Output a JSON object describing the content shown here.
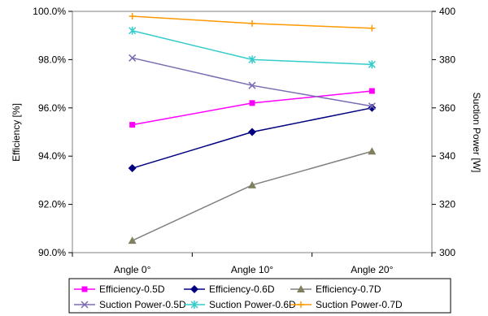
{
  "chart_data": {
    "type": "line",
    "categories": [
      "Angle 0°",
      "Angle 10°",
      "Angle 20°"
    ],
    "left_axis": {
      "label": "Efficiency [%]",
      "range": [
        90,
        100
      ],
      "ticks": [
        90,
        92,
        94,
        96,
        98,
        100
      ],
      "tick_labels": [
        "90.0%",
        "92.0%",
        "94.0%",
        "96.0%",
        "98.0%",
        "100.0%"
      ]
    },
    "right_axis": {
      "label": "Suction Power [W]",
      "range": [
        300,
        400
      ],
      "ticks": [
        300,
        320,
        340,
        360,
        380,
        400
      ],
      "tick_labels": [
        "300",
        "320",
        "340",
        "360",
        "380",
        "400"
      ]
    },
    "grid": false,
    "legend_position": "bottom",
    "series": [
      {
        "name": "Efficiency-0.5D",
        "axis": "left",
        "values": [
          95.3,
          96.2,
          96.7
        ],
        "color": "#ff00ff",
        "marker": "square"
      },
      {
        "name": "Efficiency-0.6D",
        "axis": "left",
        "values": [
          93.5,
          95.0,
          96.0
        ],
        "color": "#000080",
        "marker": "diamond"
      },
      {
        "name": "Efficiency-0.7D",
        "axis": "left",
        "values": [
          90.5,
          92.8,
          94.2
        ],
        "color": "#808080",
        "marker_color": "#808060",
        "marker": "triangle"
      },
      {
        "name": "Suction Power-0.5D",
        "axis": "right",
        "values": [
          380.7,
          369.3,
          360.7
        ],
        "color": "#7b6bb3",
        "marker": "x"
      },
      {
        "name": "Suction Power-0.6D",
        "axis": "right",
        "values": [
          392,
          380,
          378
        ],
        "color": "#33cccc",
        "marker": "star"
      },
      {
        "name": "Suction Power-0.7D",
        "axis": "right",
        "values": [
          398,
          395,
          393
        ],
        "color": "#ff9900",
        "marker": "plus"
      }
    ]
  }
}
